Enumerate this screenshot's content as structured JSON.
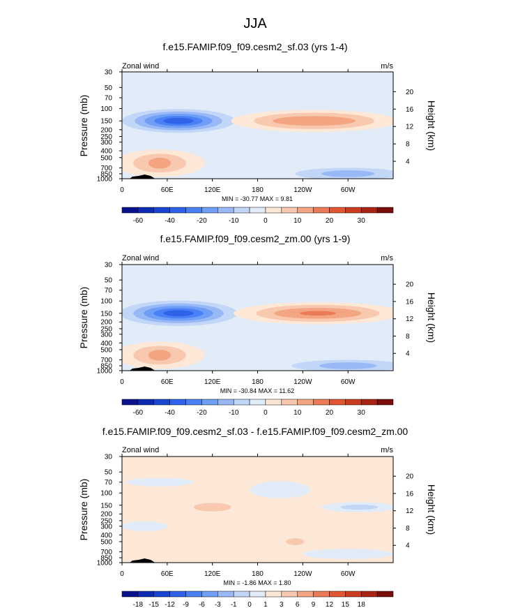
{
  "figure_title": "JJA",
  "palettes": {
    "main": [
      "#08128c",
      "#0c2bb0",
      "#1846d1",
      "#2e62e8",
      "#4a80f5",
      "#6f9ef7",
      "#98b8f6",
      "#c2d7f7",
      "#e2ecf9",
      "#fde8d8",
      "#f8c9ae",
      "#f3a582",
      "#ea7b56",
      "#df5631",
      "#c93c1f",
      "#a82514",
      "#7a0c0a"
    ],
    "diff": [
      "#08128c",
      "#0c2bb0",
      "#1846d1",
      "#2e62e8",
      "#4a80f5",
      "#6f9ef7",
      "#98b8f6",
      "#c2d7f7",
      "#e2ecf9",
      "#fde8d8",
      "#f8c9ae",
      "#f3a582",
      "#ea7b56",
      "#df5631",
      "#c93c1f",
      "#a82514",
      "#7a0c0a"
    ]
  },
  "chart_data": [
    {
      "type": "heatmap",
      "title": "f.e15.FAMIP.f09_f09.cesm2_sf.03 (yrs 1-4)",
      "variable_label": "Zonal wind",
      "units_label": "m/s",
      "ylabel": "Pressure (mb)",
      "ylabel_right": "Height (km)",
      "xticks": [
        "0",
        "60E",
        "120E",
        "180",
        "120W",
        "60W"
      ],
      "xtick_values": [
        0,
        60,
        120,
        180,
        240,
        300
      ],
      "yticks": [
        "30",
        "50",
        "70",
        "100",
        "150",
        "200",
        "250",
        "300",
        "400",
        "500",
        "700",
        "850",
        "1000"
      ],
      "ytick_values": [
        30,
        50,
        70,
        100,
        150,
        200,
        250,
        300,
        400,
        500,
        700,
        850,
        1000
      ],
      "yticks_right": [
        "20",
        "16",
        "12",
        "8",
        "4"
      ],
      "yticks_right_values": [
        20,
        16,
        12,
        8,
        4
      ],
      "xlim": [
        0,
        360
      ],
      "ylim": [
        1000,
        30
      ],
      "y_scale": "log",
      "stats": "MIN = -30.77  MAX =  9.81",
      "colorbar_labels": [
        "-60",
        "-40",
        "-20",
        "-10",
        "0",
        "10",
        "20",
        "30"
      ],
      "colorbar_boxes": 17,
      "colorbar_label_index": [
        1,
        3,
        5,
        7,
        9,
        11,
        13,
        15
      ],
      "palette": "main",
      "regions": [
        {
          "name": "sh-jet",
          "cx": 75,
          "cp": 150,
          "rx": [
            75,
            58,
            45,
            32,
            20
          ],
          "ry": [
            7,
            5.5,
            4.2,
            2.9,
            1.8
          ],
          "levels": [
            7,
            6,
            5,
            4,
            3
          ]
        },
        {
          "name": "upper-easterlies-pacific",
          "cx": 255,
          "cp": 150,
          "rx": [
            110,
            80,
            55
          ],
          "ry": [
            6.5,
            4.8,
            2.8
          ],
          "levels": [
            9,
            10,
            11
          ]
        },
        {
          "name": "low-westerlies",
          "cx": 50,
          "cp": 600,
          "rx": [
            60,
            35,
            15
          ],
          "ry": [
            8,
            5.5,
            3.2
          ],
          "levels": [
            9,
            10,
            11
          ]
        },
        {
          "name": "trade-easterlies",
          "cx": 300,
          "cp": 850,
          "rx": [
            70,
            35
          ],
          "ry": [
            3.5,
            2
          ],
          "levels": [
            7,
            6
          ]
        }
      ]
    },
    {
      "type": "heatmap",
      "title": "f.e15.FAMIP.f09_f09.cesm2_zm.00 (yrs 1-9)",
      "variable_label": "Zonal wind",
      "units_label": "m/s",
      "ylabel": "Pressure (mb)",
      "ylabel_right": "Height (km)",
      "xticks": [
        "0",
        "60E",
        "120E",
        "180",
        "120W",
        "60W"
      ],
      "xtick_values": [
        0,
        60,
        120,
        180,
        240,
        300
      ],
      "yticks": [
        "30",
        "50",
        "70",
        "100",
        "150",
        "200",
        "250",
        "300",
        "400",
        "500",
        "700",
        "850",
        "1000"
      ],
      "ytick_values": [
        30,
        50,
        70,
        100,
        150,
        200,
        250,
        300,
        400,
        500,
        700,
        850,
        1000
      ],
      "yticks_right": [
        "20",
        "16",
        "12",
        "8",
        "4"
      ],
      "yticks_right_values": [
        20,
        16,
        12,
        8,
        4
      ],
      "xlim": [
        0,
        360
      ],
      "ylim": [
        1000,
        30
      ],
      "y_scale": "log",
      "stats": "MIN = -30.84  MAX = 11.62",
      "colorbar_labels": [
        "-60",
        "-40",
        "-20",
        "-10",
        "0",
        "10",
        "20",
        "30"
      ],
      "colorbar_boxes": 17,
      "colorbar_label_index": [
        1,
        3,
        5,
        7,
        9,
        11,
        13,
        15
      ],
      "palette": "main",
      "regions": [
        {
          "name": "sh-jet",
          "cx": 75,
          "cp": 150,
          "rx": [
            78,
            60,
            46,
            33,
            20
          ],
          "ry": [
            7.5,
            5.8,
            4.4,
            3,
            1.8
          ],
          "levels": [
            7,
            6,
            5,
            4,
            3
          ]
        },
        {
          "name": "upper-easterlies-pacific",
          "cx": 260,
          "cp": 150,
          "rx": [
            112,
            82,
            58,
            24
          ],
          "ry": [
            6.5,
            5,
            3.2,
            1.4
          ],
          "levels": [
            9,
            10,
            11,
            12
          ]
        },
        {
          "name": "low-westerlies",
          "cx": 50,
          "cp": 600,
          "rx": [
            60,
            35,
            15
          ],
          "ry": [
            8,
            5.5,
            3.2
          ],
          "levels": [
            9,
            10,
            11
          ]
        },
        {
          "name": "trade-easterlies",
          "cx": 300,
          "cp": 850,
          "rx": [
            75,
            38
          ],
          "ry": [
            3.5,
            2
          ],
          "levels": [
            7,
            6
          ]
        }
      ]
    },
    {
      "type": "heatmap",
      "title": "f.e15.FAMIP.f09_f09.cesm2_sf.03 - f.e15.FAMIP.f09_f09.cesm2_zm.00",
      "variable_label": "Zonal wind",
      "units_label": "m/s",
      "ylabel": "Pressure (mb)",
      "ylabel_right": "Height (km)",
      "xticks": [
        "0",
        "60E",
        "120E",
        "180",
        "120W",
        "60W"
      ],
      "xtick_values": [
        0,
        60,
        120,
        180,
        240,
        300
      ],
      "yticks": [
        "30",
        "50",
        "70",
        "100",
        "150",
        "200",
        "250",
        "300",
        "400",
        "500",
        "700",
        "850",
        "1000"
      ],
      "ytick_values": [
        30,
        50,
        70,
        100,
        150,
        200,
        250,
        300,
        400,
        500,
        700,
        850,
        1000
      ],
      "yticks_right": [
        "20",
        "16",
        "12",
        "8",
        "4"
      ],
      "yticks_right_values": [
        20,
        16,
        12,
        8,
        4
      ],
      "xlim": [
        0,
        360
      ],
      "ylim": [
        1000,
        30
      ],
      "y_scale": "log",
      "stats": "MIN = -1.86  MAX =  1.80",
      "colorbar_labels": [
        "-18",
        "-15",
        "-12",
        "-9",
        "-6",
        "-3",
        "-1",
        "0",
        "1",
        "3",
        "6",
        "9",
        "12",
        "15",
        "18"
      ],
      "colorbar_boxes": 17,
      "colorbar_label_index": [
        1,
        2,
        3,
        4,
        5,
        6,
        7,
        8,
        9,
        10,
        11,
        12,
        13,
        14,
        15
      ],
      "palette": "diff",
      "background_level": 9,
      "regions": [
        {
          "name": "upper-left-negative",
          "cx": 50,
          "cp": 70,
          "rx": [
            45
          ],
          "ry": [
            2.5
          ],
          "levels": [
            8
          ]
        },
        {
          "name": "mid-pacific-negative",
          "cx": 210,
          "cp": 90,
          "rx": [
            40
          ],
          "ry": [
            5
          ],
          "levels": [
            8
          ]
        },
        {
          "name": "eastern-negative",
          "cx": 315,
          "cp": 160,
          "rx": [
            50,
            25
          ],
          "ry": [
            3,
            1.5
          ],
          "levels": [
            8,
            7
          ]
        },
        {
          "name": "low-left-negative",
          "cx": 30,
          "cp": 300,
          "rx": [
            30
          ],
          "ry": [
            3
          ],
          "levels": [
            8
          ]
        },
        {
          "name": "low-right-negative",
          "cx": 300,
          "cp": 750,
          "rx": [
            60
          ],
          "ry": [
            3
          ],
          "levels": [
            8
          ]
        },
        {
          "name": "positive-patch-120e",
          "cx": 120,
          "cp": 160,
          "rx": [
            25
          ],
          "ry": [
            2.5
          ],
          "levels": [
            10
          ]
        },
        {
          "name": "positive-patch-200",
          "cx": 230,
          "cp": 500,
          "rx": [
            12
          ],
          "ry": [
            2
          ],
          "levels": [
            10
          ]
        }
      ]
    }
  ]
}
